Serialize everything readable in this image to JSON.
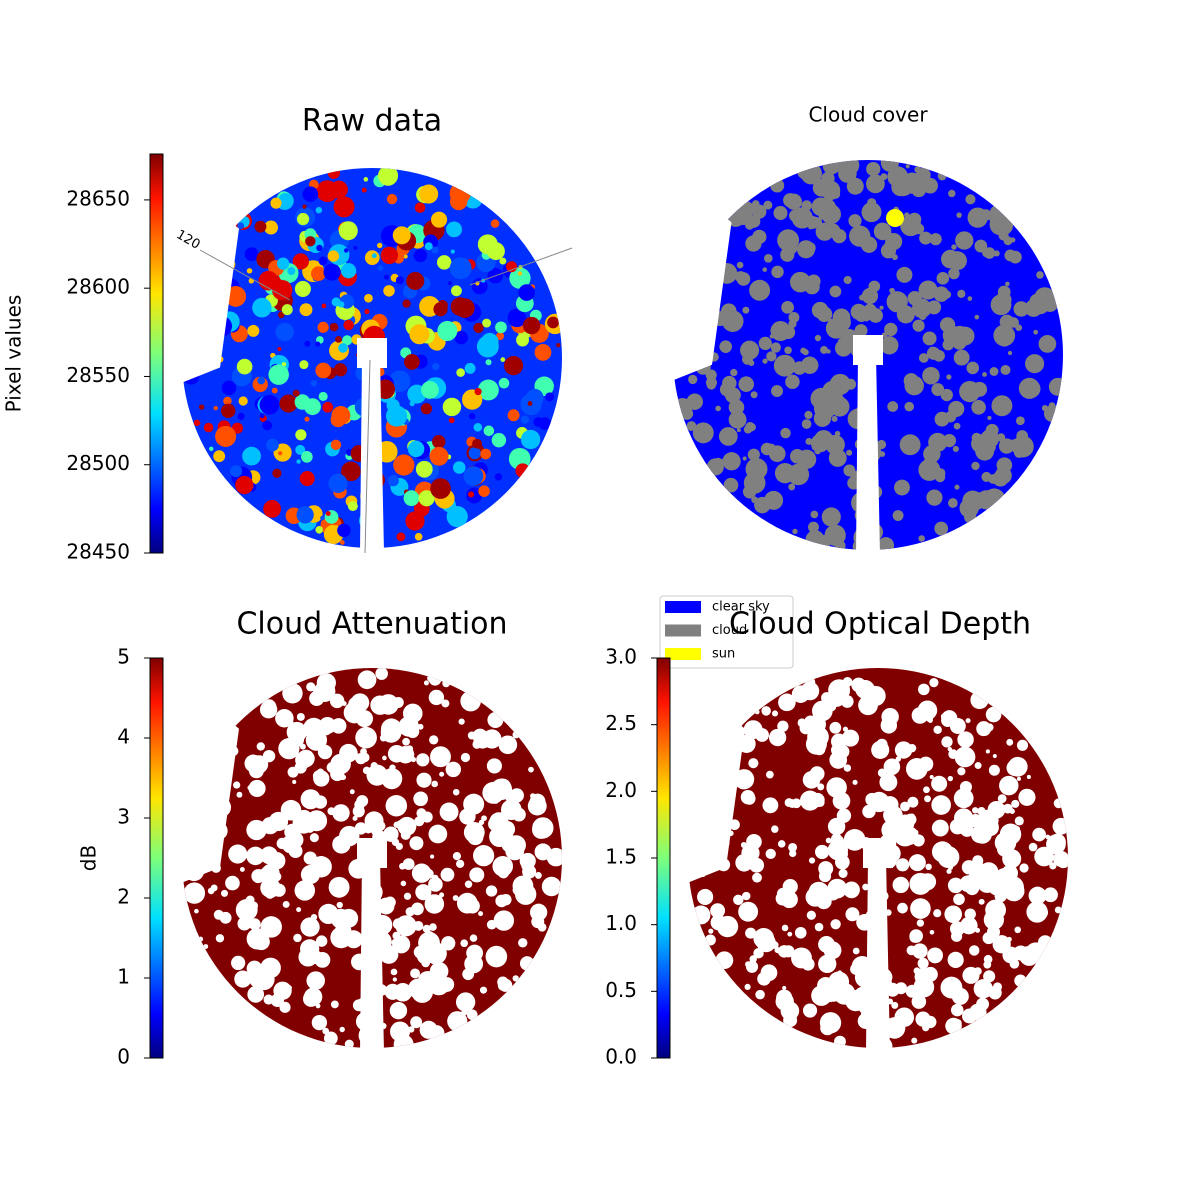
{
  "chart_data": [
    {
      "type": "image",
      "title": "Raw data",
      "colormap": "jet",
      "colorbar": {
        "label": "Pixel values",
        "lim": [
          28450,
          28676
        ],
        "ticks": [
          28450,
          28500,
          28550,
          28600,
          28650
        ]
      },
      "annotations": [
        "120"
      ]
    },
    {
      "type": "image",
      "title": "Cloud cover",
      "series": [
        {
          "name": "clear sky",
          "color": "#0000ff"
        },
        {
          "name": "cloud",
          "color": "#808080"
        },
        {
          "name": "sun",
          "color": "#ffff00"
        }
      ]
    },
    {
      "type": "image",
      "title": "Cloud Attenuation",
      "colormap": "jet",
      "color": "#800000",
      "colorbar": {
        "label": "dB",
        "lim": [
          0,
          5
        ],
        "ticks": [
          0,
          1,
          2,
          3,
          4,
          5
        ]
      }
    },
    {
      "type": "image",
      "title": "Cloud Optical Depth",
      "colormap": "jet",
      "color": "#800000",
      "colorbar": {
        "lim": [
          0,
          3
        ],
        "ticks": [
          {
            "value": 0,
            "label": "0.0"
          },
          0.5,
          {
            "value": 1,
            "label": "1.0"
          },
          1.5,
          {
            "value": 2,
            "label": "2.0"
          },
          2.5,
          {
            "value": 3,
            "label": "3.0"
          }
        ]
      }
    }
  ]
}
